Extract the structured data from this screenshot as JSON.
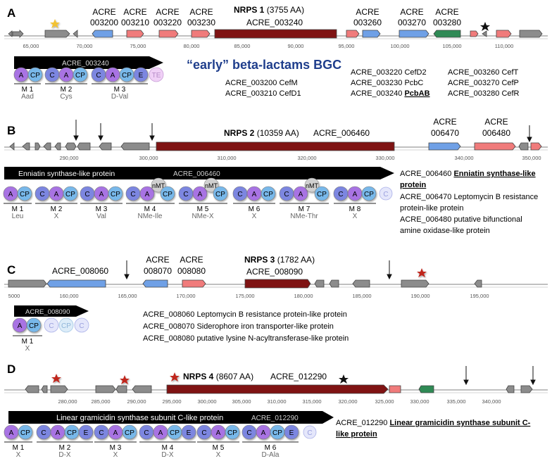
{
  "colors": {
    "gray": "#8c8c8c",
    "blue": "#6fa0e6",
    "red": "#f07b7b",
    "green": "#2f8a55",
    "darkred": "#7f1313",
    "A": "#a873e3",
    "CP": "#78b8ea",
    "C": "#7c86e0",
    "E": "#7c86e0",
    "TE": "#f0d0f6",
    "nMT": "#d0d0d0",
    "title": "#1f3e8c",
    "star_gold": "#f2c232",
    "star_red": "#c0271e"
  },
  "panels": [
    {
      "letter": "A",
      "nrps_title_bold": "NRPS 1",
      "nrps_title_rest": " (3755 AA)",
      "nrps_id": "ACRE_003240",
      "genes_above": [
        {
          "line1": "ACRE",
          "line2": "003200"
        },
        {
          "line1": "ACRE",
          "line2": "003210"
        },
        {
          "line1": "ACRE",
          "line2": "003220"
        },
        {
          "line1": "ACRE",
          "line2": "003230"
        },
        {
          "line1": "ACRE",
          "line2": "003260"
        },
        {
          "line1": "ACRE",
          "line2": "003270"
        },
        {
          "line1": "ACRE",
          "line2": "003280"
        }
      ],
      "ticks": [
        "65,000",
        "70,000",
        "75,000",
        "80,000",
        "85,000",
        "90,000",
        "95,000",
        "100,000",
        "105,000",
        "110,000"
      ],
      "protein_bar": "ACRE_003240",
      "modules": [
        {
          "name": "M 1",
          "sub": "Aad"
        },
        {
          "name": "M 2",
          "sub": "Cys"
        },
        {
          "name": "M 3",
          "sub": "D-Val"
        }
      ],
      "big_title": "“early” beta-lactams BGC",
      "annotations_col1": [
        "ACRE_003200 CefM",
        "ACRE_003210 CefD1"
      ],
      "annotations_col2": [
        "ACRE_003220 CefD2",
        "ACRE_003230 PcbC"
      ],
      "annotations_col2_last_prefix": "ACRE_003240 ",
      "annotations_col2_last_bold": "PcbAB",
      "annotations_col3": [
        "ACRE_003260 CefT",
        "ACRE_003270 CefP",
        "ACRE_003280 CefR"
      ]
    },
    {
      "letter": "B",
      "nrps_title_bold": "NRPS 2",
      "nrps_title_rest": " (10359 AA)",
      "nrps_id": "ACRE_006460",
      "genes_above": [
        {
          "line1": "ACRE",
          "line2": "006470"
        },
        {
          "line1": "ACRE",
          "line2": "006480"
        }
      ],
      "ticks": [
        "290,000",
        "300,000",
        "310,000",
        "320,000",
        "330,000",
        "340,000",
        "350,000"
      ],
      "protein_bar": "Enniatin synthase-like protein",
      "protein_bar_id": "ACRE_006460",
      "modules": [
        {
          "name": "M 1",
          "sub": "Leu"
        },
        {
          "name": "M 2",
          "sub": "X"
        },
        {
          "name": "M 3",
          "sub": "Val"
        },
        {
          "name": "M 4",
          "sub": "NMe-Ile"
        },
        {
          "name": "M 5",
          "sub": "NMe-X"
        },
        {
          "name": "M 6",
          "sub": "X"
        },
        {
          "name": "M 7",
          "sub": "NMe-Thr"
        },
        {
          "name": "M 8",
          "sub": "X"
        }
      ],
      "annot1_prefix": "ACRE_006460 ",
      "annot1_bold_a": "Enniatin synthase-like",
      "annot1_bold_b": "protein",
      "annot_lines": [
        "ACRE_006470 Leptomycin B resistance",
        "protein-like protein",
        "ACRE_006480 putative bifunctional",
        "amine oxidase-like protein"
      ]
    },
    {
      "letter": "C",
      "nrps_title_bold": "NRPS 3",
      "nrps_title_rest": " (1782 AA)",
      "nrps_id": "ACRE_008090",
      "gene_label_left": "ACRE_008060",
      "genes_above": [
        {
          "line1": "ACRE",
          "line2": "008070"
        },
        {
          "line1": "ACRE",
          "line2": "008080"
        }
      ],
      "ticks": [
        "5000",
        "160,000",
        "165,000",
        "170,000",
        "175,000",
        "180,000",
        "185,000",
        "190,000",
        "195,000"
      ],
      "protein_bar": "ACRE_008090",
      "modules": [
        {
          "name": "M 1",
          "sub": "X"
        }
      ],
      "annot_lines": [
        "ACRE_008060 Leptomycin B resistance protein-like protein",
        "ACRE_008070 Siderophore iron transporter-like protein",
        "ACRE_008080 putative lysine N-acyltransferase-like protein"
      ]
    },
    {
      "letter": "D",
      "nrps_title_bold": "NRPS 4",
      "nrps_title_rest": " (8607 AA)",
      "nrps_id": "ACRE_012290",
      "ticks": [
        "280,000",
        "285,000",
        "290,000",
        "295,000",
        "300,000",
        "305,000",
        "310,000",
        "315,000",
        "320,000",
        "325,000",
        "330,000",
        "335,000",
        "340,000"
      ],
      "protein_bar": "Linear gramicidin synthase subunit C-like protein",
      "protein_bar_id": "ACRE_012290",
      "modules": [
        {
          "name": "M 1",
          "sub": "X"
        },
        {
          "name": "M 2",
          "sub": "D-X"
        },
        {
          "name": "M 3",
          "sub": "X"
        },
        {
          "name": "M 4",
          "sub": "D-X"
        },
        {
          "name": "M 5",
          "sub": "X"
        },
        {
          "name": "M 6",
          "sub": "D-Ala"
        }
      ],
      "annot1_prefix": "ACRE_012290 ",
      "annot1_bold_a": "Linear gramicidin synthase subunit C-",
      "annot1_bold_b": "like protein"
    }
  ]
}
